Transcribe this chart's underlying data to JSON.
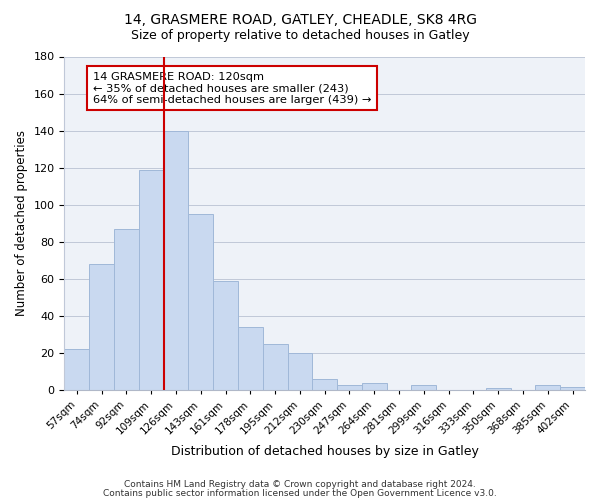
{
  "title1": "14, GRASMERE ROAD, GATLEY, CHEADLE, SK8 4RG",
  "title2": "Size of property relative to detached houses in Gatley",
  "xlabel": "Distribution of detached houses by size in Gatley",
  "ylabel": "Number of detached properties",
  "categories": [
    "57sqm",
    "74sqm",
    "92sqm",
    "109sqm",
    "126sqm",
    "143sqm",
    "161sqm",
    "178sqm",
    "195sqm",
    "212sqm",
    "230sqm",
    "247sqm",
    "264sqm",
    "281sqm",
    "299sqm",
    "316sqm",
    "333sqm",
    "350sqm",
    "368sqm",
    "385sqm",
    "402sqm"
  ],
  "values": [
    22,
    68,
    87,
    119,
    140,
    95,
    59,
    34,
    25,
    20,
    6,
    3,
    4,
    0,
    3,
    0,
    0,
    1,
    0,
    3,
    2
  ],
  "bar_color": "#c9d9f0",
  "bar_edge_color": "#a0b8d8",
  "redline_index": 4,
  "annotation_title": "14 GRASMERE ROAD: 120sqm",
  "annotation_line1": "← 35% of detached houses are smaller (243)",
  "annotation_line2": "64% of semi-detached houses are larger (439) →",
  "annotation_box_color": "#ffffff",
  "annotation_box_edge": "#cc0000",
  "redline_color": "#cc0000",
  "ylim": [
    0,
    180
  ],
  "yticks": [
    0,
    20,
    40,
    60,
    80,
    100,
    120,
    140,
    160,
    180
  ],
  "footer1": "Contains HM Land Registry data © Crown copyright and database right 2024.",
  "footer2": "Contains public sector information licensed under the Open Government Licence v3.0."
}
